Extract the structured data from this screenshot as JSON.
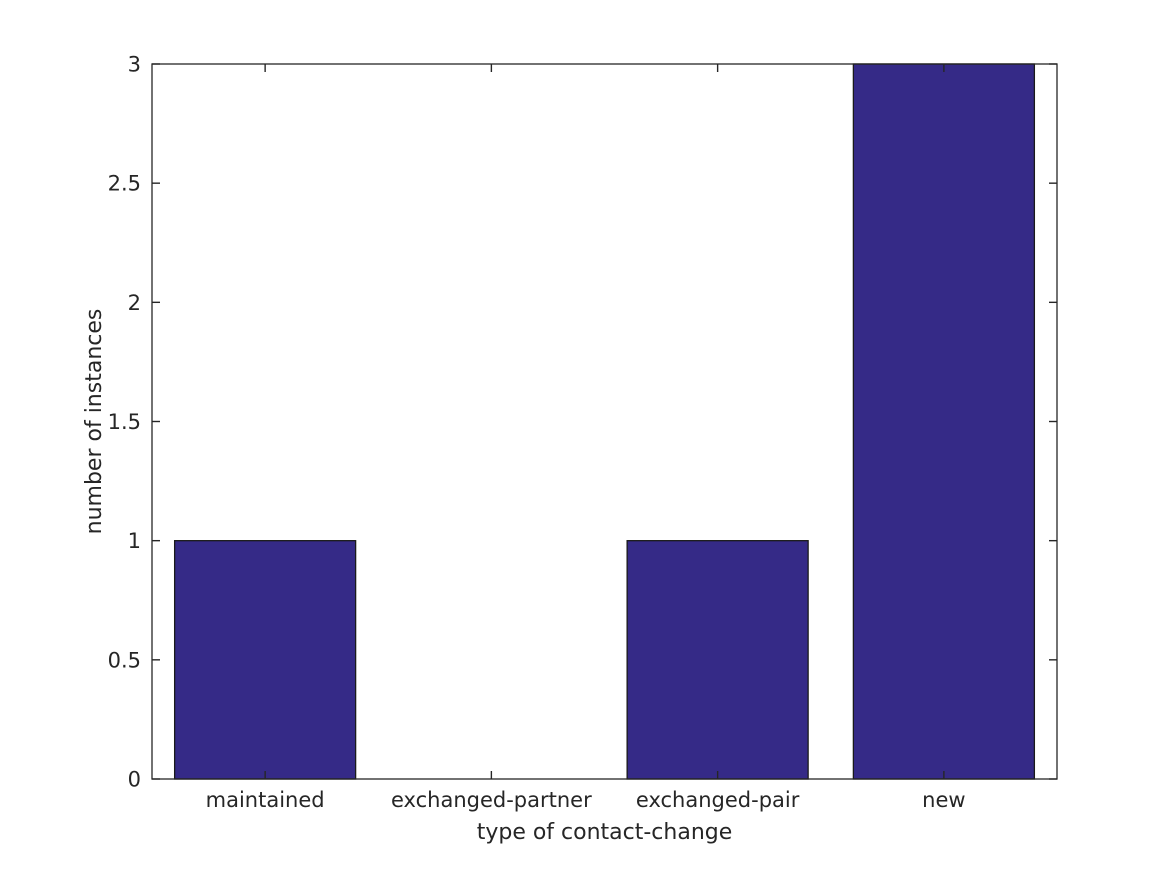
{
  "chart_data": {
    "type": "bar",
    "categories": [
      "maintained",
      "exchanged-partner",
      "exchanged-pair",
      "new"
    ],
    "values": [
      1,
      0,
      1,
      3
    ],
    "title": "",
    "xlabel": "type of contact-change",
    "ylabel": "number of instances",
    "ylim": [
      0,
      3
    ],
    "yticks": [
      0,
      0.5,
      1,
      1.5,
      2,
      2.5,
      3
    ],
    "ytick_labels": [
      "0",
      "0.5",
      "1",
      "1.5",
      "2",
      "2.5",
      "3"
    ],
    "bar_width_fraction": 0.8,
    "bar_color": "#352A87",
    "bar_edge_color": "#1a1a1a",
    "axis_color": "#262626",
    "text_color": "#262626",
    "background_color": "#ffffff",
    "grid": false,
    "legend": null,
    "ticks_direction": "in",
    "box": true
  }
}
